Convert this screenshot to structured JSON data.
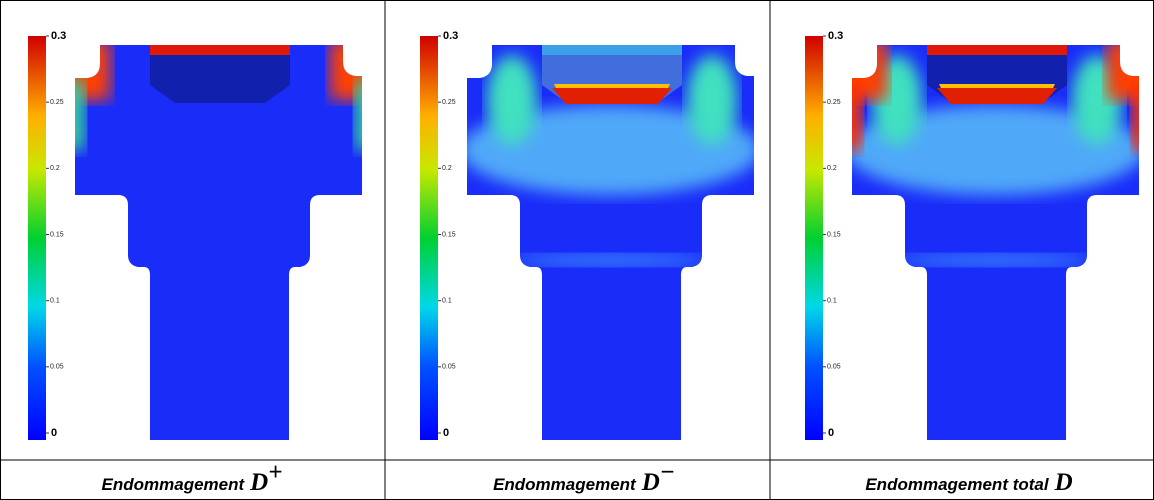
{
  "colorbar": {
    "ticks": [
      0,
      0.05,
      0.1,
      0.15,
      0.2,
      0.25,
      0.3
    ]
  },
  "panels": [
    {
      "caption": {
        "text": "Endommagement",
        "symbol": "D",
        "sup": "+"
      }
    },
    {
      "caption": {
        "text": "Endommagement",
        "symbol": "D",
        "sup": "−"
      }
    },
    {
      "caption": {
        "text": "Endommagement total",
        "symbol": "D"
      }
    }
  ]
}
